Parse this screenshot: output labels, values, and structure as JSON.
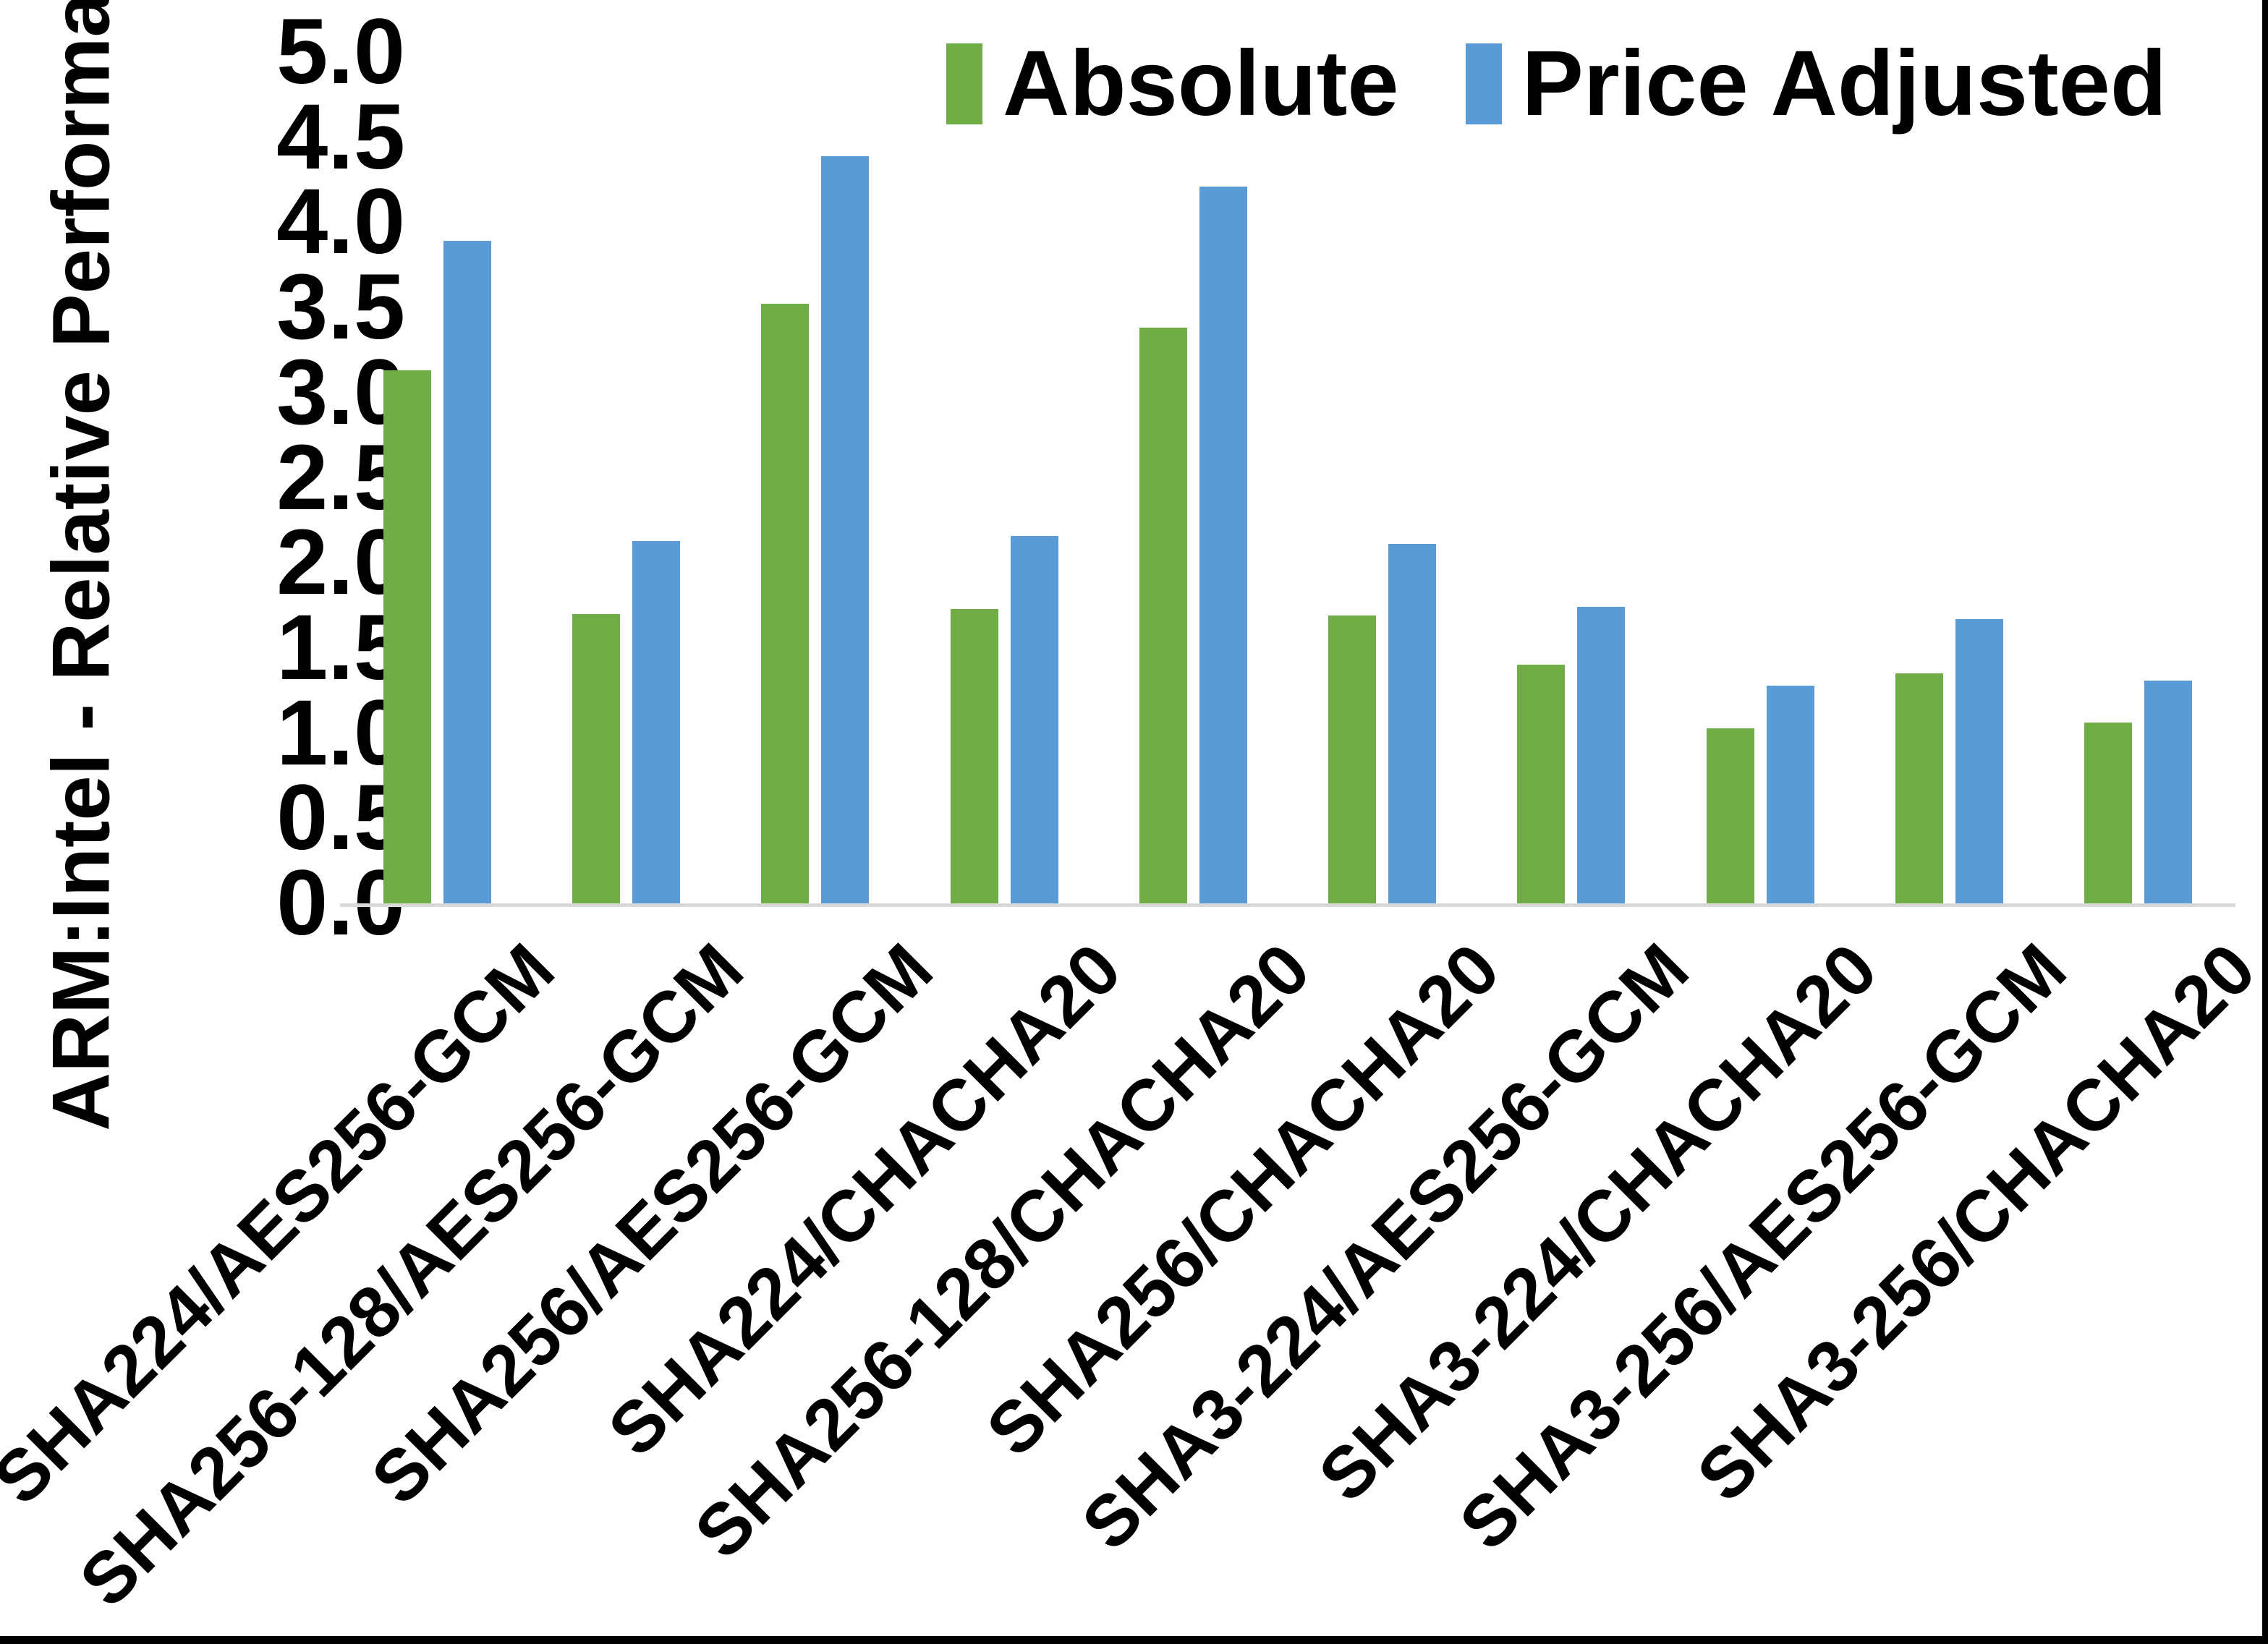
{
  "chart_data": {
    "type": "bar",
    "title": "",
    "xlabel": "",
    "ylabel": "ARM:Intel - Relative Performance",
    "ylim": [
      0,
      5
    ],
    "ytick_step": 0.5,
    "yticks": [
      "5.0",
      "4.5",
      "4.0",
      "3.5",
      "3.0",
      "2.5",
      "2.0",
      "1.5",
      "1.0",
      "0.5",
      "0.0"
    ],
    "grid": false,
    "legend_position": "top-right",
    "axis_line_color": "#d9d9d9",
    "categories": [
      "SHA224/AES256-GCM",
      "SHA256-128/AES256-GCM",
      "SHA256/AES256-GCM",
      "SHA224/CHACHA20",
      "SHA256-128/CHACHA20",
      "SHA256/CHACHA20",
      "SHA3-224/AES256-GCM",
      "SHA3-224/CHACHA20",
      "SHA3-256/AES256-GCM",
      "SHA3-256/CHACHA20"
    ],
    "series": [
      {
        "name": "Absolute",
        "color": "#70AD47",
        "values": [
          3.13,
          1.7,
          3.52,
          1.73,
          3.38,
          1.69,
          1.4,
          1.03,
          1.35,
          1.06
        ]
      },
      {
        "name": "Price Adjusted",
        "color": "#5B9BD5",
        "values": [
          3.89,
          2.13,
          4.39,
          2.16,
          4.21,
          2.11,
          1.74,
          1.28,
          1.67,
          1.31
        ]
      }
    ]
  }
}
